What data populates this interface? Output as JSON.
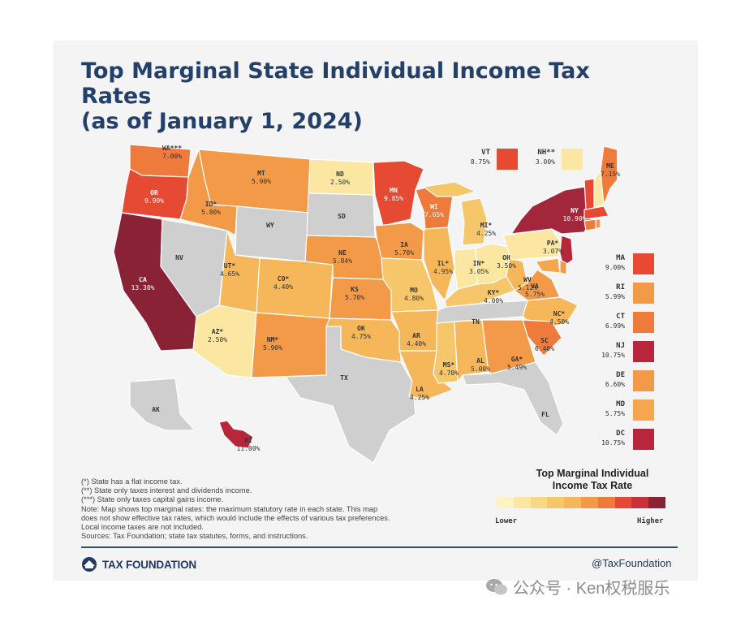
{
  "title_line1": "Top Marginal State Individual Income Tax Rates",
  "title_line2": "(as of January 1, 2024)",
  "states": [
    {
      "abbr": "WA***",
      "rate": "7.00%"
    },
    {
      "abbr": "OR",
      "rate": "9.90%"
    },
    {
      "abbr": "CA",
      "rate": "13.30%"
    },
    {
      "abbr": "NV",
      "rate": ""
    },
    {
      "abbr": "ID*",
      "rate": "5.80%"
    },
    {
      "abbr": "MT",
      "rate": "5.90%"
    },
    {
      "abbr": "WY",
      "rate": ""
    },
    {
      "abbr": "UT*",
      "rate": "4.65%"
    },
    {
      "abbr": "AZ*",
      "rate": "2.50%"
    },
    {
      "abbr": "CO*",
      "rate": "4.40%"
    },
    {
      "abbr": "NM*",
      "rate": "5.90%"
    },
    {
      "abbr": "ND",
      "rate": "2.50%"
    },
    {
      "abbr": "SD",
      "rate": ""
    },
    {
      "abbr": "NE",
      "rate": "5.84%"
    },
    {
      "abbr": "KS",
      "rate": "5.70%"
    },
    {
      "abbr": "OK",
      "rate": "4.75%"
    },
    {
      "abbr": "TX",
      "rate": ""
    },
    {
      "abbr": "MN",
      "rate": "9.85%"
    },
    {
      "abbr": "IA",
      "rate": "5.70%"
    },
    {
      "abbr": "MO",
      "rate": "4.80%"
    },
    {
      "abbr": "AR",
      "rate": "4.40%"
    },
    {
      "abbr": "LA",
      "rate": "4.25%"
    },
    {
      "abbr": "WI",
      "rate": "7.65%"
    },
    {
      "abbr": "IL*",
      "rate": "4.95%"
    },
    {
      "abbr": "MS*",
      "rate": "4.70%"
    },
    {
      "abbr": "MI*",
      "rate": "4.25%"
    },
    {
      "abbr": "IN*",
      "rate": "3.05%"
    },
    {
      "abbr": "KY*",
      "rate": "4.00%"
    },
    {
      "abbr": "TN",
      "rate": ""
    },
    {
      "abbr": "AL",
      "rate": "5.00%"
    },
    {
      "abbr": "OH",
      "rate": "3.50%"
    },
    {
      "abbr": "WV",
      "rate": "5.12%"
    },
    {
      "abbr": "VA",
      "rate": "5.75%"
    },
    {
      "abbr": "NC*",
      "rate": "4.50%"
    },
    {
      "abbr": "SC",
      "rate": "6.40%"
    },
    {
      "abbr": "GA*",
      "rate": "5.49%"
    },
    {
      "abbr": "FL",
      "rate": ""
    },
    {
      "abbr": "PA*",
      "rate": "3.07%"
    },
    {
      "abbr": "NY",
      "rate": "10.90%"
    },
    {
      "abbr": "ME",
      "rate": "7.15%"
    },
    {
      "abbr": "AK",
      "rate": ""
    },
    {
      "abbr": "HI",
      "rate": "11.00%"
    }
  ],
  "callouts_top": [
    {
      "abbr": "VT",
      "rate": "8.75%",
      "color": "#e64a33"
    },
    {
      "abbr": "NH**",
      "rate": "3.00%",
      "color": "#fbe7a2"
    }
  ],
  "callouts_side": [
    {
      "abbr": "MA",
      "rate": "9.00%",
      "color": "#e64a33"
    },
    {
      "abbr": "RI",
      "rate": "5.99%",
      "color": "#f29a48"
    },
    {
      "abbr": "CT",
      "rate": "6.99%",
      "color": "#ee7a3c"
    },
    {
      "abbr": "NJ",
      "rate": "10.75%",
      "color": "#b8263b"
    },
    {
      "abbr": "DE",
      "rate": "6.60%",
      "color": "#f29a48"
    },
    {
      "abbr": "MD",
      "rate": "5.75%",
      "color": "#f5a64f"
    },
    {
      "abbr": "DC",
      "rate": "10.75%",
      "color": "#b8263b"
    }
  ],
  "notes": [
    "(*) State has a flat income tax.",
    "(**) State only taxes interest and dividends income.",
    "(***) State only taxes capital gains income.",
    "Note: Map shows top marginal rates: the maximum statutory rate in each state. This map",
    "does not show effective tax rates, which would include the effects of various tax preferences.",
    "Local income taxes are not included.",
    "Sources: Tax Foundation; state tax statutes, forms, and instructions."
  ],
  "legend": {
    "title_line1": "Top Marginal Individual",
    "title_line2": "Income Tax Rate",
    "low": "Lower",
    "high": "Higher",
    "colors": [
      "#fdf3c4",
      "#fbe7a2",
      "#f8d886",
      "#f6c76a",
      "#f5b75a",
      "#f29a48",
      "#ee7a3c",
      "#e64a33",
      "#c8303a",
      "#8a2236"
    ]
  },
  "footer": {
    "logo": "TAX FOUNDATION",
    "handle": "@TaxFoundation"
  },
  "watermark": "公众号 · Ken权税服乐"
}
